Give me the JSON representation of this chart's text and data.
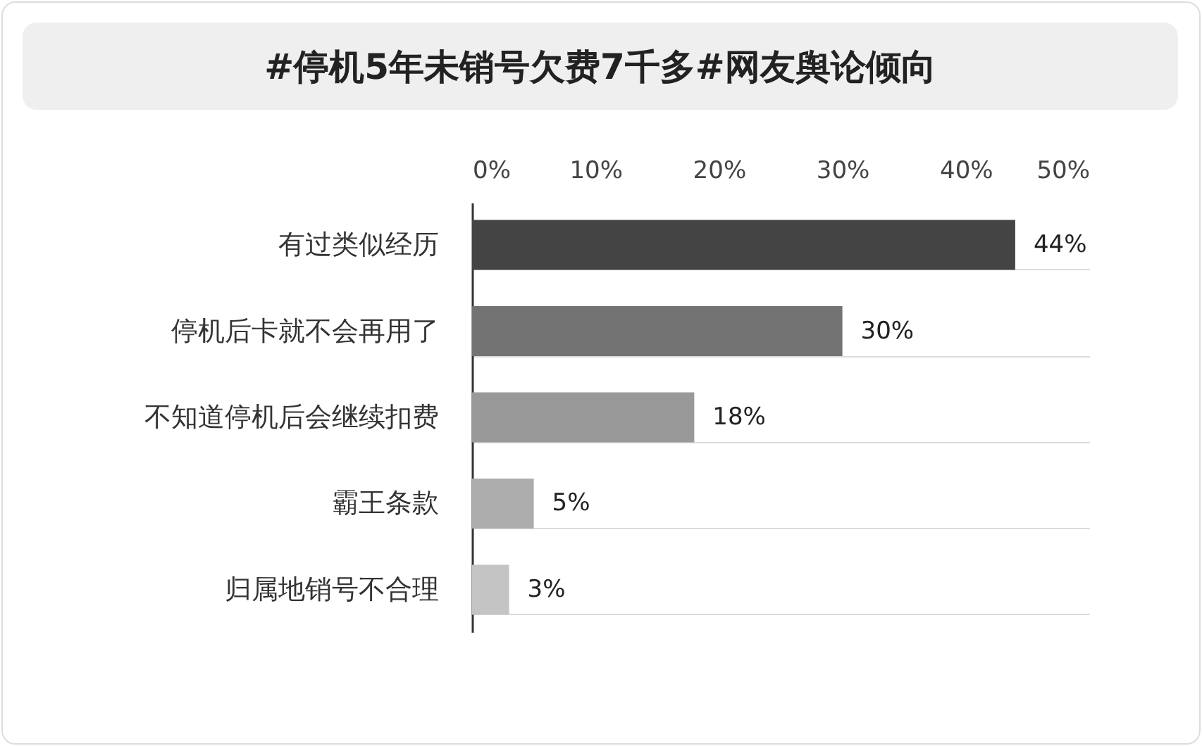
{
  "chart_data": {
    "type": "bar",
    "orientation": "horizontal",
    "title": "#停机5年未销号欠费7千多#网友舆论倾向",
    "categories": [
      "有过类似经历",
      "停机后卡就不会再用了",
      "不知道停机后会继续扣费",
      "霸王条款",
      "归属地销号不合理"
    ],
    "values": [
      44,
      30,
      18,
      5,
      3
    ],
    "value_labels": [
      "44%",
      "30%",
      "18%",
      "5%",
      "3%"
    ],
    "colors": [
      "#444444",
      "#737373",
      "#999999",
      "#adadad",
      "#c4c4c4"
    ],
    "xlim": [
      0,
      50
    ],
    "xticks": [
      {
        "value": 0,
        "label": "0%"
      },
      {
        "value": 10,
        "label": "10%"
      },
      {
        "value": 20,
        "label": "20%"
      },
      {
        "value": 30,
        "label": "30%"
      },
      {
        "value": 40,
        "label": "40%"
      },
      {
        "value": 50,
        "label": "50%"
      }
    ],
    "grid": "y"
  }
}
